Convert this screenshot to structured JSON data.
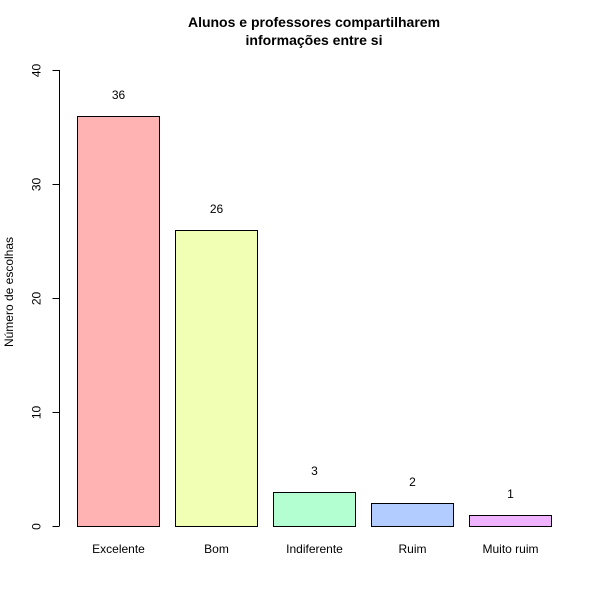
{
  "chart_data": {
    "type": "bar",
    "title_lines": [
      "Alunos e professores compartilharem",
      "informações entre si"
    ],
    "ylabel": "Número de escolhas",
    "xlabel": "",
    "categories": [
      "Excelente",
      "Bom",
      "Indiferente",
      "Ruim",
      "Muito ruim"
    ],
    "values": [
      36,
      26,
      3,
      2,
      1
    ],
    "data_labels": [
      "36",
      "26",
      "3",
      "2",
      "1"
    ],
    "colors": [
      "#FFB3B3",
      "#F0FFB3",
      "#B3FFD1",
      "#B3CCFF",
      "#F0B3FF"
    ],
    "ylim": [
      0,
      40
    ],
    "yticks": [
      0,
      10,
      20,
      30,
      40
    ],
    "ytick_labels": [
      "0",
      "10",
      "20",
      "30",
      "40"
    ],
    "grid": false,
    "legend": "none"
  }
}
